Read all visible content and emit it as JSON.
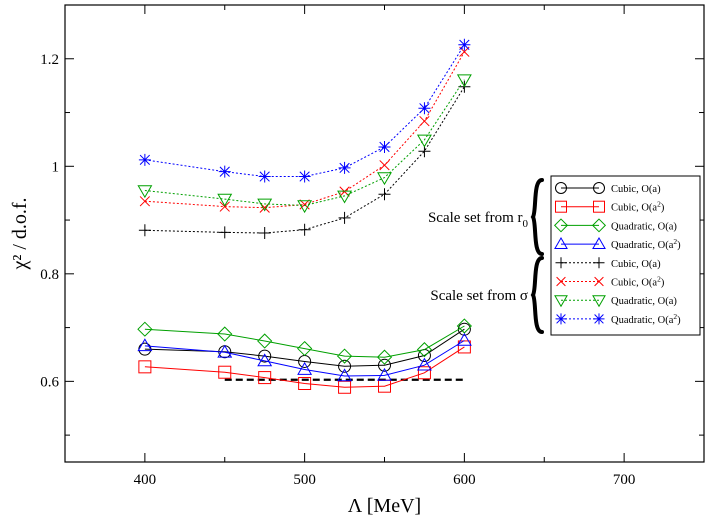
{
  "chart_data": {
    "type": "line",
    "title": "",
    "xlabel": "Λ   [MeV]",
    "ylabel": "χ² / d.o.f.",
    "xlim": [
      350,
      750
    ],
    "ylim": [
      0.45,
      1.3
    ],
    "x_ticks": [
      "400",
      "500",
      "600",
      "700"
    ],
    "y_ticks": [
      "0.6",
      "0.8",
      "1",
      "1.2"
    ],
    "x": [
      400,
      450,
      475,
      500,
      525,
      550,
      575,
      600
    ],
    "legend_position": "right",
    "groups": [
      {
        "label_main": "Scale set from r",
        "label_sub": "0",
        "series_index": [
          0,
          1,
          2,
          3
        ]
      },
      {
        "label_main": "Scale set from σ",
        "label_sub": "",
        "series_index": [
          4,
          5,
          6,
          7
        ]
      }
    ],
    "series": [
      {
        "name": "Cubic, O(a)",
        "name_base": "Cubic, O(a",
        "name_sup": "",
        "marker": "circle",
        "color": "#000000",
        "dashed": false,
        "values": [
          0.66,
          0.655,
          0.647,
          0.637,
          0.628,
          0.63,
          0.648,
          0.697
        ]
      },
      {
        "name": "Cubic, O(a²)",
        "name_base": "Cubic, O(a",
        "name_sup": "2",
        "marker": "square",
        "color": "#ff0000",
        "dashed": false,
        "values": [
          0.627,
          0.617,
          0.607,
          0.596,
          0.589,
          0.591,
          0.616,
          0.664
        ]
      },
      {
        "name": "Quadratic, O(a)",
        "name_base": "Quadratic, O(a",
        "name_sup": "",
        "marker": "diamond",
        "color": "#00a000",
        "dashed": false,
        "values": [
          0.697,
          0.688,
          0.675,
          0.661,
          0.647,
          0.645,
          0.659,
          0.703
        ]
      },
      {
        "name": "Quadratic, O(a²)",
        "name_base": "Quadratic, O(a",
        "name_sup": "2",
        "marker": "triangle-up",
        "color": "#0000ff",
        "dashed": false,
        "values": [
          0.666,
          0.654,
          0.638,
          0.622,
          0.61,
          0.611,
          0.63,
          0.676
        ]
      },
      {
        "name": "Cubic, O(a)",
        "name_base": "Cubic, O(a",
        "name_sup": "",
        "marker": "plus",
        "color": "#000000",
        "dashed": true,
        "values": [
          0.881,
          0.877,
          0.876,
          0.882,
          0.904,
          0.948,
          1.028,
          1.148
        ]
      },
      {
        "name": "Cubic, O(a²)",
        "name_base": "Cubic, O(a",
        "name_sup": "2",
        "marker": "x",
        "color": "#ff0000",
        "dashed": true,
        "values": [
          0.935,
          0.925,
          0.923,
          0.929,
          0.953,
          1.002,
          1.084,
          1.213
        ]
      },
      {
        "name": "Quadratic, O(a)",
        "name_base": "Quadratic, O(a",
        "name_sup": "",
        "marker": "triangle-down",
        "color": "#00a000",
        "dashed": true,
        "values": [
          0.955,
          0.939,
          0.93,
          0.927,
          0.945,
          0.979,
          1.049,
          1.161
        ]
      },
      {
        "name": "Quadratic, O(a²)",
        "name_base": "Quadratic, O(a",
        "name_sup": "2",
        "marker": "asterisk",
        "color": "#0000ff",
        "dashed": true,
        "values": [
          1.012,
          0.99,
          0.981,
          0.981,
          0.997,
          1.036,
          1.108,
          1.226
        ]
      }
    ],
    "reference_line": {
      "x": [
        450,
        600
      ],
      "y": 0.603,
      "color": "#000000",
      "dashed": true
    }
  }
}
